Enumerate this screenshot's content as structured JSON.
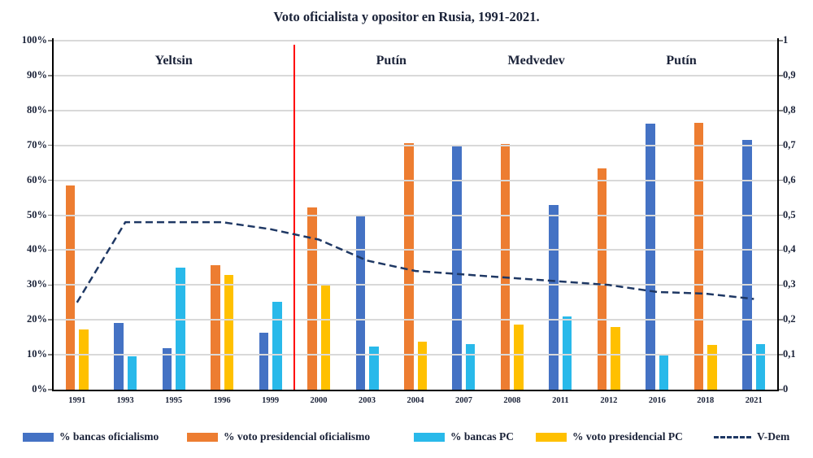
{
  "title": "Voto oficialista y opositor en Rusia, 1991-2021.",
  "colors": {
    "gridline": "#D9D9D9",
    "axis_line": "#000000",
    "text": "#1A2238",
    "era_divider": "#FF0000"
  },
  "chart_data": {
    "type": "bar",
    "categories": [
      "1991",
      "1993",
      "1995",
      "1996",
      "1999",
      "2000",
      "2003",
      "2004",
      "2007",
      "2008",
      "2011",
      "2012",
      "2016",
      "2018",
      "2021"
    ],
    "series": [
      {
        "name": "% bancas oficialismo",
        "slug": "bancas-oficialismo",
        "type": "bar",
        "axis": "left",
        "color": "#4472C4",
        "values": [
          null,
          19,
          12,
          null,
          16.3,
          null,
          49.8,
          null,
          70,
          null,
          52.9,
          null,
          76.3,
          null,
          71.6
        ]
      },
      {
        "name": "% voto presidencial oficialismo",
        "slug": "voto-presidencial-oficialismo",
        "type": "bar",
        "axis": "left",
        "color": "#ED7D31",
        "values": [
          58.4,
          null,
          null,
          35.6,
          null,
          52.3,
          null,
          70.7,
          null,
          70.5,
          null,
          63.5,
          null,
          76.5,
          null
        ]
      },
      {
        "name": "% bancas PC",
        "slug": "bancas-pc",
        "type": "bar",
        "axis": "left",
        "color": "#29B9EA",
        "values": [
          null,
          9.5,
          35,
          null,
          25.1,
          null,
          12.3,
          null,
          13,
          null,
          20.9,
          null,
          10,
          null,
          13
        ]
      },
      {
        "name": "% voto presidencial PC",
        "slug": "voto-presidencial-pc",
        "type": "bar",
        "axis": "left",
        "color": "#FFC000",
        "values": [
          17.3,
          null,
          null,
          32.8,
          null,
          29.8,
          null,
          13.7,
          null,
          18.6,
          null,
          17.9,
          null,
          12.8,
          null
        ]
      },
      {
        "name": "V-Dem",
        "slug": "vdem",
        "type": "line",
        "style": "dashed",
        "axis": "right",
        "color": "#1F3864",
        "values": [
          0.25,
          0.48,
          0.48,
          0.48,
          0.46,
          0.43,
          0.37,
          0.34,
          0.33,
          0.32,
          0.31,
          0.3,
          0.28,
          0.275,
          0.26
        ]
      }
    ],
    "left_axis": {
      "ticks": [
        "100%",
        "90%",
        "80%",
        "70%",
        "60%",
        "50%",
        "40%",
        "30%",
        "20%",
        "10%",
        "0%"
      ],
      "min": 0,
      "max": 100
    },
    "right_axis": {
      "ticks": [
        "1",
        "0,9",
        "0,8",
        "0,7",
        "0,6",
        "0,5",
        "0,4",
        "0,3",
        "0,2",
        "0,1",
        "0"
      ],
      "min": 0,
      "max": 1
    },
    "era_labels": [
      {
        "label": "Yeltsin",
        "from": 0,
        "to": 4
      },
      {
        "label": "Putín",
        "from": 5,
        "to": 8
      },
      {
        "label": "Medvedev",
        "from": 9,
        "to": 10
      },
      {
        "label": "Putín",
        "from": 11,
        "to": 14
      }
    ],
    "era_divider": {
      "after_category_index": 4,
      "color": "#FF0000"
    },
    "grid": true,
    "legend_position": "bottom"
  }
}
